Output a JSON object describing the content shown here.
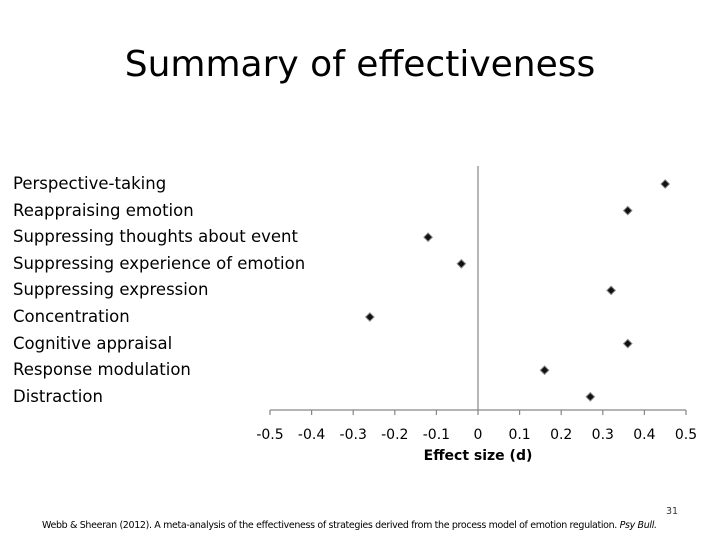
{
  "slide": {
    "title": "Summary of effectiveness",
    "citation": "Webb & Sheeran (2012). A meta-analysis of the effectiveness of strategies derived from the process model of emotion regulation.",
    "citation_journal": "Psy Bull.",
    "page_number": "31"
  },
  "chart_data": {
    "type": "scatter",
    "title": "",
    "xlabel": "Effect size (d)",
    "ylabel": "",
    "xlim": [
      -0.5,
      0.5
    ],
    "xticks": [
      -0.5,
      -0.4,
      -0.3,
      -0.2,
      -0.1,
      0,
      0.1,
      0.2,
      0.3,
      0.4,
      0.5
    ],
    "xtick_labels": [
      "-0.5",
      "-0.4",
      "-0.3",
      "-0.2",
      "-0.1",
      "0",
      "0.1",
      "0.2",
      "0.3",
      "0.4",
      "0.5"
    ],
    "categories": [
      "Perspective-taking",
      "Reappraising emotion",
      "Suppressing thoughts about event",
      "Suppressing experience of emotion",
      "Suppressing expression",
      "Concentration",
      "Cognitive appraisal",
      "Response modulation",
      "Distraction"
    ],
    "values": [
      0.45,
      0.36,
      -0.12,
      -0.04,
      0.32,
      -0.26,
      0.36,
      0.16,
      0.27
    ],
    "marker": "diamond",
    "grid": false,
    "legend": "none"
  }
}
